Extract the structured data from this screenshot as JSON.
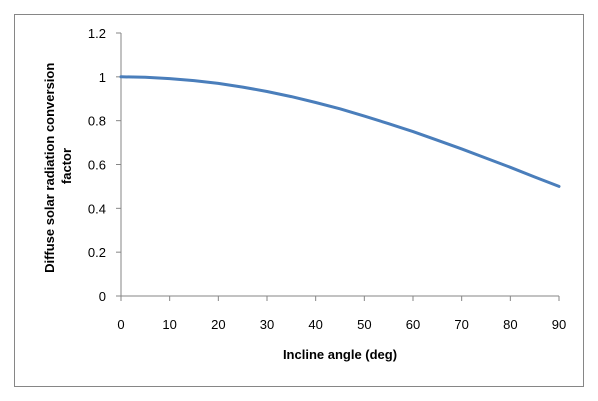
{
  "chart_data": {
    "type": "line",
    "title": "",
    "xlabel": "Incline angle (deg)",
    "ylabel_lines": [
      "Diffuse solar radiation conversion",
      "factor"
    ],
    "xlim": [
      0,
      90
    ],
    "ylim": [
      0,
      1.2
    ],
    "x_ticks": [
      "0",
      "10",
      "20",
      "30",
      "40",
      "50",
      "60",
      "70",
      "80",
      "90"
    ],
    "y_ticks": [
      "0",
      "0.2",
      "0.4",
      "0.6",
      "0.8",
      "1",
      "1.2"
    ],
    "grid": false,
    "legend": "none",
    "series": [
      {
        "color": "#4a7ebb",
        "x": [
          0,
          5,
          10,
          15,
          20,
          25,
          30,
          35,
          40,
          45,
          50,
          55,
          60,
          65,
          70,
          75,
          80,
          85,
          90
        ],
        "y": [
          1.0,
          0.998,
          0.992,
          0.983,
          0.97,
          0.953,
          0.933,
          0.91,
          0.883,
          0.854,
          0.821,
          0.786,
          0.75,
          0.711,
          0.671,
          0.629,
          0.587,
          0.543,
          0.5
        ]
      }
    ]
  }
}
